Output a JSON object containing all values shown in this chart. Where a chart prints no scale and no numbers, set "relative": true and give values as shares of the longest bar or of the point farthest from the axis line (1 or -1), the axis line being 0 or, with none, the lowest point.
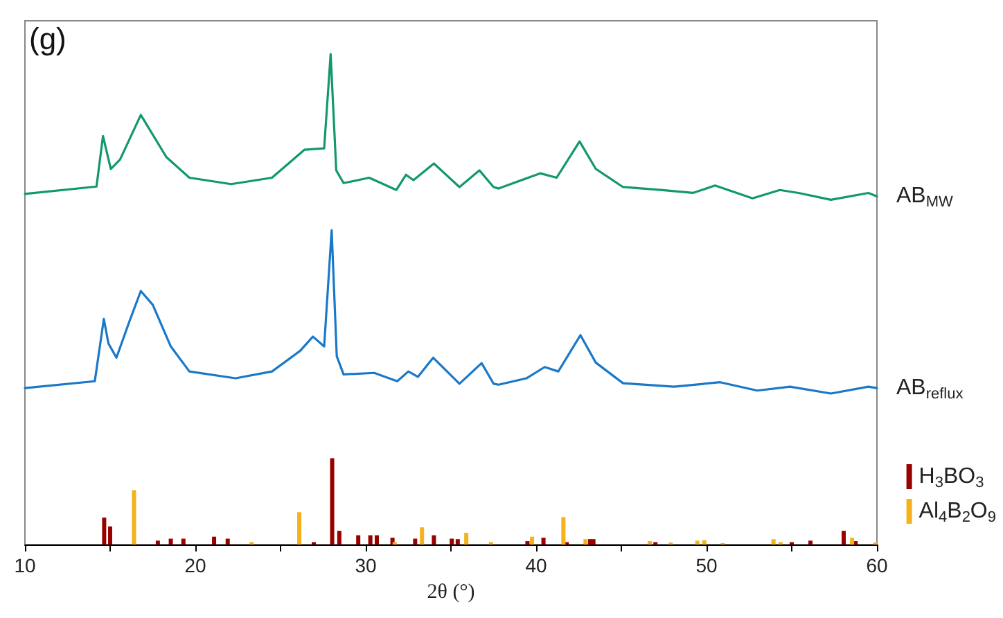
{
  "chart_data": {
    "type": "line",
    "relative": true,
    "xlabel": "2θ (°)",
    "annotations": [
      "(g)"
    ],
    "xlim": [
      10,
      60
    ],
    "xticks": [
      10,
      {
        "value": 15,
        "label": null
      },
      20,
      {
        "value": 25,
        "label": null
      },
      30,
      {
        "value": 35,
        "label": null
      },
      40,
      {
        "value": 45,
        "label": null
      },
      50,
      {
        "value": 55,
        "label": null
      },
      60
    ],
    "tick_labels": "x",
    "marker": "none",
    "line_style": "solid",
    "legend": "bottom right",
    "series": [
      {
        "name": "AB$_{MW}$",
        "color": "#12986e",
        "x": [
          10,
          14.2,
          14.58,
          15.04,
          15.58,
          16.8,
          18.3,
          19.65,
          22.1,
          24.5,
          26.4,
          27.56,
          27.94,
          28.27,
          28.7,
          30.2,
          31.8,
          32.36,
          32.8,
          34.0,
          35.5,
          36.67,
          37.5,
          37.8,
          40.24,
          41.2,
          42.55,
          43.5,
          45.1,
          47.3,
          49.2,
          50.5,
          52.7,
          54.3,
          55.4,
          57.3,
          59.5,
          60
        ],
        "values": [
          0.715,
          0.73,
          0.833,
          0.766,
          0.785,
          0.876,
          0.79,
          0.748,
          0.735,
          0.748,
          0.805,
          0.808,
          1.0,
          0.763,
          0.737,
          0.748,
          0.723,
          0.754,
          0.743,
          0.777,
          0.729,
          0.763,
          0.729,
          0.726,
          0.757,
          0.748,
          0.822,
          0.766,
          0.729,
          0.723,
          0.717,
          0.732,
          0.706,
          0.723,
          0.717,
          0.703,
          0.717,
          0.71
        ]
      },
      {
        "name": "AB$_{reflux}$",
        "color": "#1a78c9",
        "x": [
          10,
          14.1,
          14.63,
          14.9,
          15.37,
          16.1,
          16.8,
          17.5,
          18.56,
          19.65,
          22.36,
          24.5,
          26.15,
          26.9,
          27.56,
          28.0,
          28.3,
          28.7,
          30.5,
          31.85,
          32.5,
          33.06,
          33.96,
          35.5,
          36.8,
          37.5,
          37.8,
          39.43,
          40.5,
          41.3,
          42.6,
          43.5,
          45.1,
          48.1,
          50.8,
          52.98,
          54.9,
          57.3,
          59.5,
          60
        ],
        "values": [
          0.319,
          0.333,
          0.46,
          0.41,
          0.381,
          0.452,
          0.517,
          0.489,
          0.404,
          0.353,
          0.339,
          0.353,
          0.395,
          0.424,
          0.404,
          0.641,
          0.384,
          0.347,
          0.35,
          0.333,
          0.353,
          0.342,
          0.381,
          0.328,
          0.37,
          0.328,
          0.326,
          0.339,
          0.362,
          0.353,
          0.427,
          0.371,
          0.329,
          0.322,
          0.331,
          0.314,
          0.322,
          0.308,
          0.322,
          0.319
        ]
      },
      {
        "name": "H$_{3}$BO$_{3}$",
        "type": "bar",
        "color": "#990000",
        "x": [
          14.65,
          15.0,
          17.8,
          18.56,
          19.3,
          21.1,
          21.9,
          26.95,
          28.03,
          28.45,
          29.56,
          30.27,
          30.65,
          31.57,
          32.9,
          34.0,
          35.05,
          35.4,
          39.49,
          40.43,
          41.8,
          43.17,
          43.36,
          47.0,
          55.0,
          56.1,
          58.05,
          58.75
        ],
        "values": [
          0.055,
          0.037,
          0.008,
          0.012,
          0.012,
          0.016,
          0.012,
          0.005,
          0.176,
          0.028,
          0.019,
          0.019,
          0.019,
          0.014,
          0.012,
          0.019,
          0.012,
          0.011,
          0.007,
          0.014,
          0.005,
          0.011,
          0.011,
          0.005,
          0.005,
          0.008,
          0.028,
          0.007
        ]
      },
      {
        "name": "Al$_{4}$B$_{2}$O$_{9}$",
        "type": "bar",
        "color": "#f5b21c",
        "x": [
          16.4,
          23.3,
          26.1,
          31.7,
          33.3,
          35.9,
          37.35,
          39.76,
          41.6,
          42.9,
          46.67,
          47.9,
          49.46,
          49.87,
          50.95,
          53.93,
          54.34,
          58.54,
          59.9
        ],
        "values": [
          0.111,
          0.005,
          0.066,
          0.005,
          0.035,
          0.024,
          0.005,
          0.016,
          0.056,
          0.011,
          0.007,
          0.004,
          0.008,
          0.009,
          0.003,
          0.011,
          0.005,
          0.014,
          0.004
        ]
      }
    ]
  }
}
